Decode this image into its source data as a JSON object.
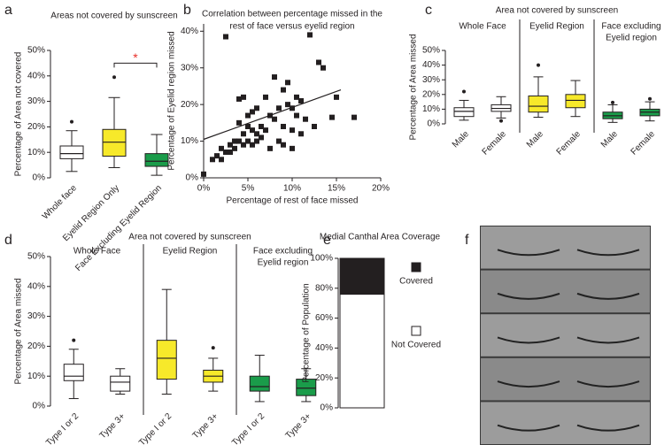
{
  "chart_data": [
    {
      "type": "box",
      "panel": "a",
      "title": "Areas not covered by sunscreen",
      "ylabel": "Percentage of Area not covered",
      "categories": [
        "Whole face",
        "Eyelid Region Only",
        "Face Excluding Eyelid Region"
      ],
      "colors": [
        "#ffffff",
        "#f7e92a",
        "#1a9c4a"
      ],
      "boxes": [
        {
          "min": 2.5,
          "q1": 7.5,
          "median": 9.5,
          "q3": 12.5,
          "max": 18.5,
          "outliers": [
            22
          ]
        },
        {
          "min": 4,
          "q1": 8.5,
          "median": 14,
          "q3": 19,
          "max": 31.5,
          "outliers": [
            39.5
          ]
        },
        {
          "min": 1,
          "q1": 4.5,
          "median": 6.5,
          "q3": 9.5,
          "max": 17,
          "outliers": []
        }
      ],
      "ylim": [
        0,
        50
      ],
      "yticks": [
        {
          "value": 0,
          "label": "0%"
        },
        {
          "value": 10,
          "label": "10%"
        },
        {
          "value": 20,
          "label": "20%"
        },
        {
          "value": 30,
          "label": "30%"
        },
        {
          "value": 40,
          "label": "40%"
        },
        {
          "value": 50,
          "label": "50%"
        }
      ],
      "annotation": {
        "text": "*",
        "between": [
          1,
          2
        ],
        "y": 45,
        "color": "#e8302a"
      }
    },
    {
      "type": "scatter",
      "panel": "b",
      "title": [
        "Correlation between percentage missed in the",
        "rest of face versus eyelid region"
      ],
      "xlabel": "Percentage of rest of face missed",
      "ylabel": "Percentage of Eyelid region missed",
      "color": "#231f20",
      "x": [
        0,
        1,
        1.5,
        2,
        2,
        2.5,
        2.5,
        3,
        3,
        3.5,
        3.5,
        4,
        4,
        4,
        4.5,
        4.5,
        4.5,
        5,
        5,
        5,
        5.5,
        5.5,
        5.5,
        6,
        6,
        6,
        6.5,
        6.5,
        7,
        7,
        7.5,
        7.5,
        8,
        8,
        8.5,
        8.5,
        9,
        9,
        9,
        9.5,
        9.5,
        10,
        10,
        10,
        10.5,
        10.5,
        11,
        11,
        11.5,
        12,
        12.5,
        13,
        13.5,
        14.5,
        15,
        17
      ],
      "y": [
        1,
        5,
        6,
        5,
        8,
        38.5,
        7,
        7,
        9,
        8,
        10,
        10,
        15,
        21.5,
        9,
        22,
        12,
        10,
        14,
        17,
        9,
        18,
        13,
        10,
        12,
        19,
        11,
        14,
        22,
        13,
        17,
        8,
        27.5,
        16,
        10,
        19,
        14,
        24,
        9,
        20,
        26,
        13,
        19,
        8,
        17,
        22,
        21,
        12,
        16,
        39,
        14,
        31.5,
        30,
        16.5,
        22,
        16.5
      ],
      "trend": {
        "x": [
          0,
          15.5
        ],
        "y": [
          10.5,
          24
        ]
      },
      "xlim": [
        0,
        20
      ],
      "ylim": [
        0,
        42
      ],
      "xticks": [
        {
          "value": 0,
          "label": "0%"
        },
        {
          "value": 5,
          "label": "5%"
        },
        {
          "value": 10,
          "label": "10%"
        },
        {
          "value": 15,
          "label": "15%"
        },
        {
          "value": 20,
          "label": "20%"
        }
      ],
      "yticks": [
        {
          "value": 0,
          "label": "0%"
        },
        {
          "value": 10,
          "label": "10%"
        },
        {
          "value": 20,
          "label": "20%"
        },
        {
          "value": 30,
          "label": "30%"
        },
        {
          "value": 40,
          "label": "40%"
        }
      ]
    },
    {
      "type": "grouped_box",
      "panel": "c",
      "title": "Area not covered by sunscreen",
      "ylabel": "Percentage of Area missed",
      "groups": [
        [
          "Whole Face"
        ],
        [
          "Eyelid Region"
        ],
        [
          "Face excluding",
          "Eyelid region"
        ]
      ],
      "categories": [
        "Male",
        "Female"
      ],
      "colors": [
        "#ffffff",
        "#f7e92a",
        "#1a9c4a"
      ],
      "boxes": [
        {
          "min": 2.5,
          "q1": 5,
          "median": 8.5,
          "q3": 11,
          "max": 16,
          "outliers": [
            22
          ]
        },
        {
          "min": 4,
          "q1": 8.5,
          "median": 10.5,
          "q3": 13,
          "max": 18.5,
          "outliers": [
            2
          ]
        },
        {
          "min": 4.5,
          "q1": 8,
          "median": 12,
          "q3": 19,
          "max": 32,
          "outliers": [
            40
          ]
        },
        {
          "min": 5,
          "q1": 11,
          "median": 16,
          "q3": 20,
          "max": 29.5,
          "outliers": []
        },
        {
          "min": 1,
          "q1": 3.5,
          "median": 5.5,
          "q3": 8,
          "max": 13,
          "outliers": [
            14.5
          ]
        },
        {
          "min": 2,
          "q1": 5.5,
          "median": 8,
          "q3": 10,
          "max": 15,
          "outliers": [
            17
          ]
        }
      ],
      "ylim": [
        0,
        50
      ],
      "yticks": [
        {
          "value": 0,
          "label": "0%"
        },
        {
          "value": 10,
          "label": "10%"
        },
        {
          "value": 20,
          "label": "20%"
        },
        {
          "value": 30,
          "label": "30%"
        },
        {
          "value": 40,
          "label": "40%"
        },
        {
          "value": 50,
          "label": "50%"
        }
      ]
    },
    {
      "type": "grouped_box",
      "panel": "d",
      "title": "Area not covered by sunscreen",
      "ylabel": "Percentage of Area missed",
      "groups": [
        [
          "Whole Face"
        ],
        [
          "Eyelid Region"
        ],
        [
          "Face excluding",
          "Eyelid region"
        ]
      ],
      "categories": [
        "Type I or 2",
        "Type 3+"
      ],
      "colors": [
        "#ffffff",
        "#f7e92a",
        "#1a9c4a"
      ],
      "boxes": [
        {
          "min": 2.5,
          "q1": 8.5,
          "median": 10,
          "q3": 14,
          "max": 19,
          "outliers": [
            22
          ]
        },
        {
          "min": 4,
          "q1": 5,
          "median": 8,
          "q3": 10,
          "max": 12.5,
          "outliers": []
        },
        {
          "min": 4,
          "q1": 9,
          "median": 16,
          "q3": 22,
          "max": 39,
          "outliers": []
        },
        {
          "min": 5,
          "q1": 8,
          "median": 10,
          "q3": 12,
          "max": 16,
          "outliers": [
            19.5
          ]
        },
        {
          "min": 1.5,
          "q1": 5,
          "median": 6.5,
          "q3": 10,
          "max": 17,
          "outliers": []
        },
        {
          "min": 1.5,
          "q1": 3.5,
          "median": 6,
          "q3": 9,
          "max": 12.5,
          "outliers": []
        }
      ],
      "ylim": [
        0,
        50
      ],
      "yticks": [
        {
          "value": 0,
          "label": "0%"
        },
        {
          "value": 10,
          "label": "10%"
        },
        {
          "value": 20,
          "label": "20%"
        },
        {
          "value": 30,
          "label": "30%"
        },
        {
          "value": 40,
          "label": "40%"
        },
        {
          "value": 50,
          "label": "50%"
        }
      ]
    },
    {
      "type": "stacked_bar",
      "panel": "e",
      "title": "Medial Canthal Area Coverage",
      "ylabel": "Percentage of Population",
      "series": [
        {
          "name": "Not Covered",
          "color": "#ffffff",
          "values": [
            76
          ]
        },
        {
          "name": "Covered",
          "color": "#231f20",
          "values": [
            24
          ]
        }
      ],
      "ylim": [
        0,
        100
      ],
      "yticks": [
        {
          "value": 0,
          "label": "0%"
        },
        {
          "value": 20,
          "label": "20%"
        },
        {
          "value": 40,
          "label": "40%"
        },
        {
          "value": 60,
          "label": "60%"
        },
        {
          "value": 80,
          "label": "80%"
        },
        {
          "value": 100,
          "label": "100%"
        }
      ]
    },
    {
      "type": "image",
      "panel": "f"
    }
  ]
}
